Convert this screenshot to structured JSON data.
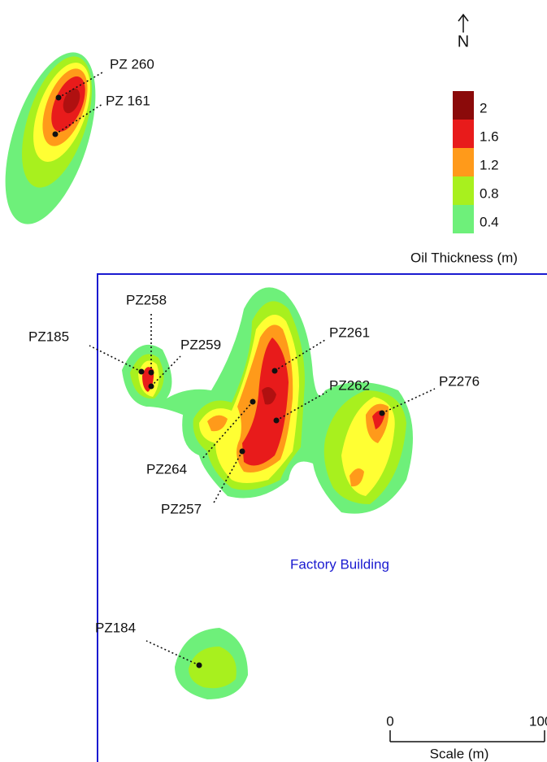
{
  "north": "N",
  "legend": {
    "title": "Oil Thickness (m)",
    "items": [
      {
        "label": 2,
        "color": "#8b0a0a"
      },
      {
        "label": 1.6,
        "color": "#e81b1b"
      },
      {
        "label": 1.2,
        "color": "#ff9a1a"
      },
      {
        "label": 0.8,
        "color": "#a8f01e"
      },
      {
        "label": 0.4,
        "color": "#6ef07a"
      }
    ]
  },
  "wells": [
    "PZ 260",
    "PZ 161",
    "PZ185",
    "PZ258",
    "PZ259",
    "PZ261",
    "PZ262",
    "PZ264",
    "PZ257",
    "PZ276",
    "PZ184"
  ],
  "building_label": "Factory Building",
  "scale": {
    "title": "Scale (m)",
    "ticks": [
      "0",
      "100"
    ]
  }
}
